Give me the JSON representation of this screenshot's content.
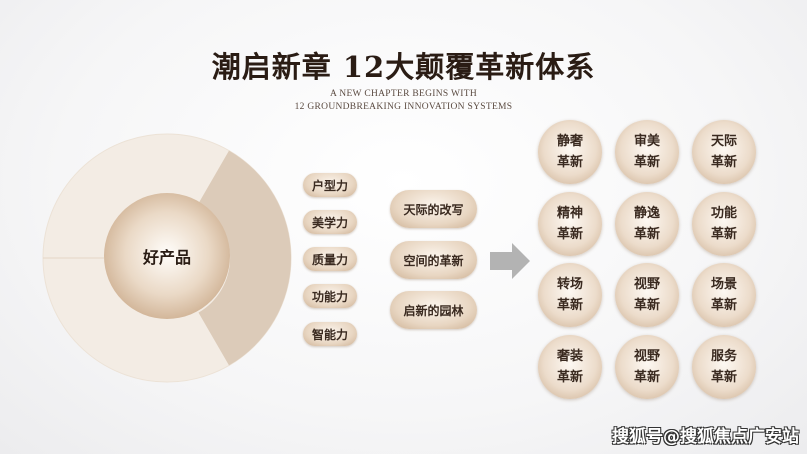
{
  "title": "潮启新章  12大颠覆革新体系",
  "subtitle_line1": "A NEW CHAPTER BEGINS WITH",
  "subtitle_line2": "12 GROUNDBREAKING INNOVATION SYSTEMS",
  "center_label": "好产品",
  "powers": [
    "户型力",
    "美学力",
    "质量力",
    "功能力",
    "智能力"
  ],
  "changes": [
    "天际的改写",
    "空间的革新",
    "启新的园林"
  ],
  "innovations": [
    [
      "静奢",
      "革新"
    ],
    [
      "审美",
      "革新"
    ],
    [
      "天际",
      "革新"
    ],
    [
      "精神",
      "革新"
    ],
    [
      "静逸",
      "革新"
    ],
    [
      "功能",
      "革新"
    ],
    [
      "转场",
      "革新"
    ],
    [
      "视野",
      "革新"
    ],
    [
      "场景",
      "革新"
    ],
    [
      "奢装",
      "革新"
    ],
    [
      "视野",
      "革新"
    ],
    [
      "服务",
      "革新"
    ]
  ],
  "watermark": "搜狐号@搜狐焦点广安站",
  "colors": {
    "accent": "#cdb194",
    "wedge": "#dccbb9",
    "ring": "#f2ebe3",
    "text": "#2a1c14",
    "arrow": "#b3b3b3"
  }
}
